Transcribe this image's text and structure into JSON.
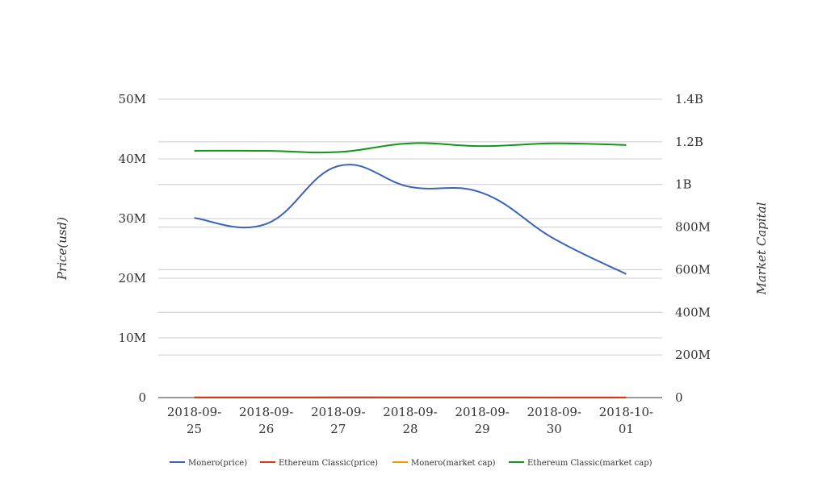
{
  "chart_data": {
    "type": "line",
    "categories": [
      "2018-09-25",
      "2018-09-26",
      "2018-09-27",
      "2018-09-28",
      "2018-09-29",
      "2018-09-30",
      "2018-10-01"
    ],
    "category_labels": [
      [
        "2018-09-",
        "25"
      ],
      [
        "2018-09-",
        "26"
      ],
      [
        "2018-09-",
        "27"
      ],
      [
        "2018-09-",
        "28"
      ],
      [
        "2018-09-",
        "29"
      ],
      [
        "2018-09-",
        "30"
      ],
      [
        "2018-10-",
        "01"
      ]
    ],
    "ylabel": "Price(usd)",
    "y2label": "Market Capital",
    "ylim": [
      0,
      50000000
    ],
    "y2lim": [
      0,
      1400000000
    ],
    "y_ticks": [
      "0",
      "10M",
      "20M",
      "30M",
      "40M",
      "50M"
    ],
    "y2_ticks": [
      "0",
      "200M",
      "400M",
      "600M",
      "800M",
      "1B",
      "1.2B",
      "1.4B"
    ],
    "grid": true,
    "legend_position": "bottom",
    "series": [
      {
        "name": "Monero(price)",
        "axis": "left",
        "color": "#3c64b4",
        "values": [
          30100000,
          29100000,
          38800000,
          35300000,
          34300000,
          26600000,
          20700000
        ]
      },
      {
        "name": "Ethereum Classic(price)",
        "axis": "left",
        "color": "#dc3912",
        "values": [
          12,
          11,
          11,
          11,
          11,
          11,
          10
        ]
      },
      {
        "name": "Monero(market cap)",
        "axis": "right",
        "color": "#ff9900",
        "values": [
          1900000,
          1700000,
          2300000,
          2100000,
          2000000,
          1600000,
          1300000
        ]
      },
      {
        "name": "Ethereum Classic(market cap)",
        "axis": "right",
        "color": "#109618",
        "values": [
          1158000000,
          1158000000,
          1152000000,
          1193000000,
          1180000000,
          1193000000,
          1185000000
        ]
      }
    ]
  }
}
